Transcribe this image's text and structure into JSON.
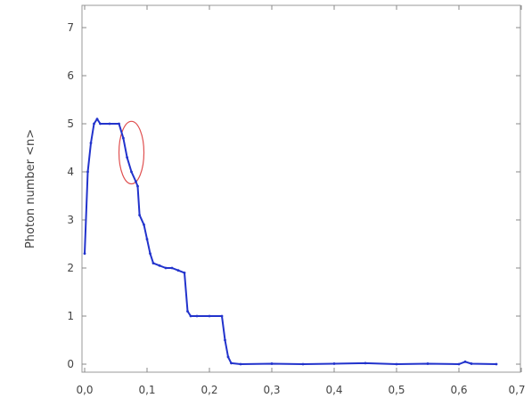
{
  "chart_data": {
    "type": "line",
    "title": "",
    "xlabel": "",
    "ylabel": "Photon number <n>",
    "xlim": [
      0.0,
      0.7
    ],
    "ylim": [
      0,
      7
    ],
    "x_ticks": [
      0.0,
      0.1,
      0.2,
      0.3,
      0.4,
      0.5,
      0.6,
      0.7
    ],
    "x_tick_labels": [
      "0,0",
      "0,1",
      "0,2",
      "0,3",
      "0,4",
      "0,5",
      "0,6",
      "0,7"
    ],
    "y_ticks": [
      0,
      1,
      2,
      3,
      4,
      5,
      6,
      7
    ],
    "y_tick_labels": [
      "0",
      "1",
      "2",
      "3",
      "4",
      "5",
      "6",
      "7"
    ],
    "grid": false,
    "legend": "none",
    "series": [
      {
        "color": "#2233cc",
        "x": [
          0.0,
          0.005,
          0.01,
          0.015,
          0.02,
          0.025,
          0.04,
          0.055,
          0.062,
          0.068,
          0.075,
          0.082,
          0.085,
          0.088,
          0.095,
          0.1,
          0.105,
          0.11,
          0.12,
          0.13,
          0.14,
          0.15,
          0.16,
          0.165,
          0.17,
          0.18,
          0.2,
          0.22,
          0.225,
          0.23,
          0.235,
          0.25,
          0.3,
          0.35,
          0.4,
          0.45,
          0.5,
          0.55,
          0.6,
          0.61,
          0.62,
          0.66
        ],
        "y": [
          2.3,
          4.0,
          4.6,
          5.0,
          5.1,
          5.0,
          5.0,
          5.0,
          4.7,
          4.3,
          4.0,
          3.8,
          3.7,
          3.1,
          2.9,
          2.6,
          2.3,
          2.1,
          2.05,
          2.0,
          2.0,
          1.95,
          1.9,
          1.1,
          1.0,
          1.0,
          1.0,
          1.0,
          0.5,
          0.15,
          0.02,
          0.0,
          0.01,
          0.0,
          0.01,
          0.02,
          0.0,
          0.01,
          0.0,
          0.05,
          0.01,
          0.0
        ]
      }
    ],
    "annotations": [
      {
        "type": "ellipse",
        "color": "#e05050",
        "center": [
          0.075,
          4.4
        ],
        "radius_x": 0.02,
        "radius_y": 0.65
      }
    ]
  }
}
